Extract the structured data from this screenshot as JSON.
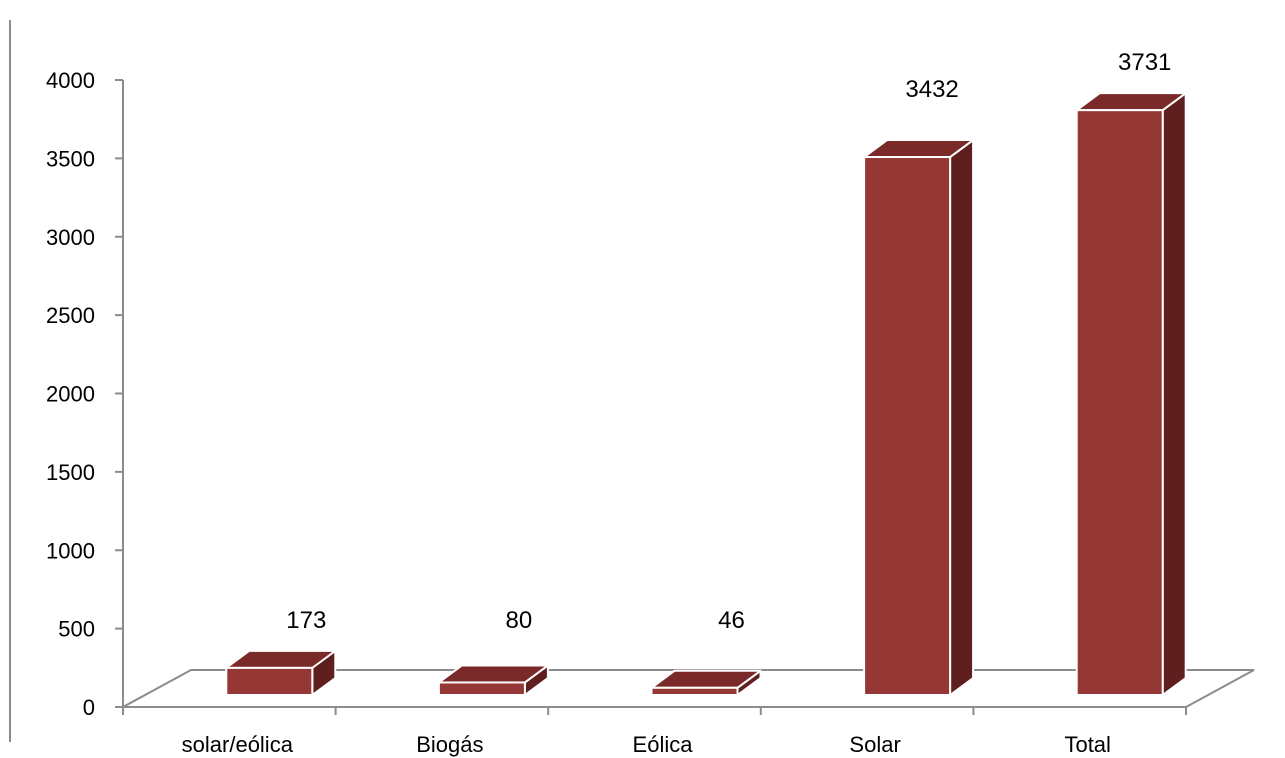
{
  "chart_data": {
    "type": "bar",
    "categories": [
      "solar/eólica",
      "Biogás",
      "Eólica",
      "Solar",
      "Total"
    ],
    "values": [
      173,
      80,
      46,
      3432,
      3731
    ],
    "data_labels": [
      "173",
      "80",
      "46",
      "3432",
      "3731"
    ],
    "ylim": [
      0,
      4000
    ],
    "yticks": [
      "0",
      "500",
      "1000",
      "1500",
      "2000",
      "2500",
      "3000",
      "3500",
      "4000"
    ],
    "grid": false,
    "legend": "none",
    "style": "3d-column",
    "colors": {
      "front": "#953735",
      "top": "#7a2a28",
      "side": "#5e1f1e",
      "edge": "#ffffff",
      "axis": "#8c8c8c"
    }
  }
}
